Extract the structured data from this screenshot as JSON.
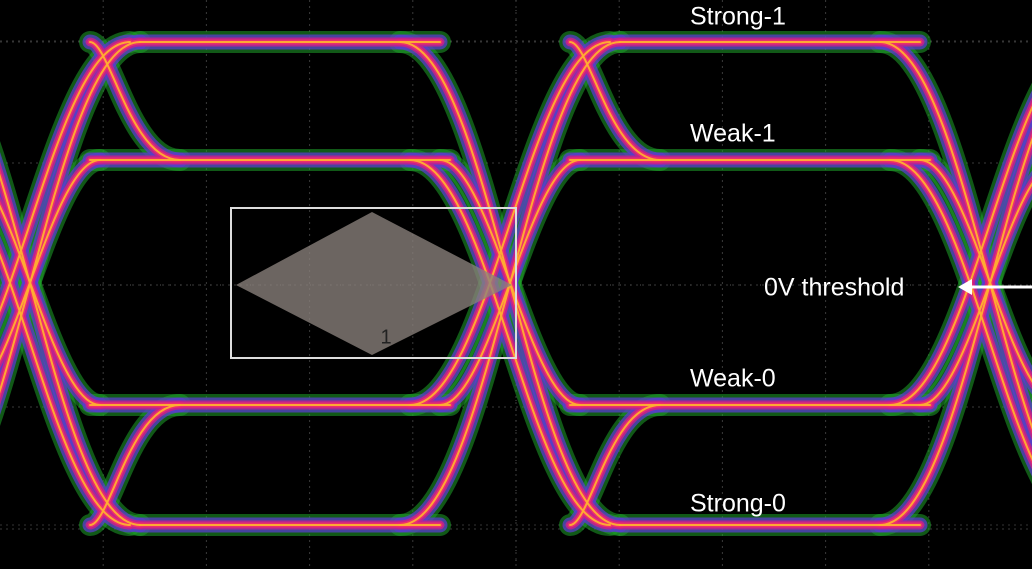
{
  "labels": {
    "strong_1": "Strong-1",
    "weak_1": "Weak-1",
    "threshold": "0V threshold",
    "weak_0": "Weak-0",
    "strong_0": "Strong-0"
  },
  "mask": {
    "label": "1"
  }
}
